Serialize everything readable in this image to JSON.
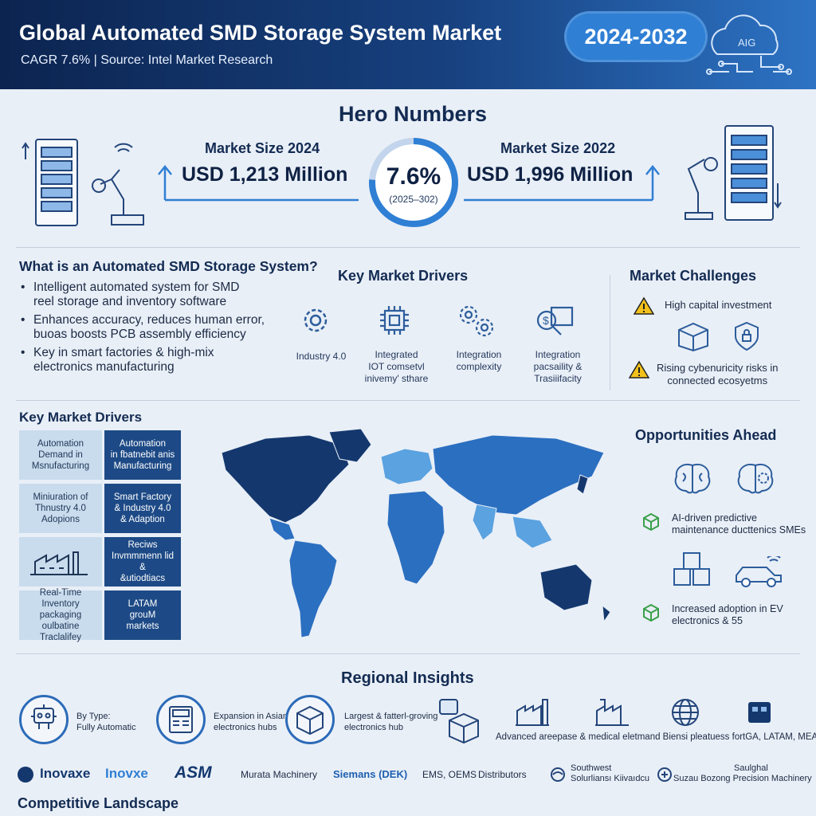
{
  "header": {
    "title": "Global Automated SMD Storage System Market",
    "subtitle": "CAGR 7.6% | Source: Intel Market Research",
    "year_range": "2024-2032",
    "cloud_label": "AIG"
  },
  "hero": {
    "heading": "Hero Numbers",
    "left_label": "Market Size 2024",
    "left_value": "USD 1,213 Million",
    "right_label": "Market Size 2022",
    "right_value": "USD 1,996 Million",
    "cagr_value": "7.6%",
    "cagr_range": "(2025–302)",
    "cagr_fraction": 0.76
  },
  "what_is": {
    "heading": "What is an Automated SMD Storage System?",
    "bullets": [
      [
        "Intelligent automated system for SMD",
        "reel storage and inventory software"
      ],
      [
        "Enhances accuracy, reduces human error,",
        "buoas boosts PCB assembly efficiency"
      ],
      [
        " Key in smart factories & high-mix",
        "electronics manufacturing"
      ]
    ],
    "bullet_mark": "•"
  },
  "drivers_top": {
    "heading": "Key Market Drivers",
    "items": [
      {
        "icon": "gear-icon",
        "lines": [
          "Industry 4.0"
        ]
      },
      {
        "icon": "chip-icon",
        "lines": [
          "Integrated",
          "IOT comsetvl",
          "inivemy' sthare"
        ]
      },
      {
        "icon": "gears-icon",
        "lines": [
          "Integration",
          "complexity"
        ]
      },
      {
        "icon": "dollar-search-icon",
        "lines": [
          "Integration",
          "pacsaility &",
          "Trasiiifacity"
        ]
      }
    ]
  },
  "challenges": {
    "heading": "Market Challenges",
    "items": [
      {
        "icon": "warning-icon",
        "lines": [
          "High capital investment"
        ]
      },
      {
        "icon": "warning-icon",
        "lines": [
          "Rising cybenuricity risks in",
          "connected ecosyetms"
        ]
      }
    ]
  },
  "drivers_grid": {
    "heading": "Key Market Drivers",
    "rows": [
      {
        "left": [
          "Automation",
          "Demand in",
          "Msnufacturing"
        ],
        "right": [
          "Automation",
          "in fbatnebit anis",
          "Manufacturing"
        ]
      },
      {
        "left": [
          "Miniuration of",
          "Thnustry 4.0",
          "Adopions"
        ],
        "right": [
          "Smart Factory",
          "& Industry 4.0",
          "& Adaption"
        ]
      },
      {
        "left": [],
        "right": [
          "Reciws",
          "Invmmmenn lid &",
          "&utiodtiacs"
        ]
      },
      {
        "left": [
          "Real-Time Inventory",
          "packaging oulbatine",
          "Traclalifey"
        ],
        "right": [
          "LATAM",
          "grouM",
          "markets"
        ]
      }
    ]
  },
  "opportunities": {
    "heading": "Opportunities Ahead",
    "items": [
      {
        "lines": [
          "AI-driven predictive",
          "maintenance ducttenics SMEs"
        ]
      },
      {
        "lines": [
          "Increased adoption in EV",
          "electronics & 55"
        ]
      }
    ]
  },
  "regional": {
    "heading": "Regional Insights",
    "items": [
      {
        "icon": "robot-icon",
        "lines": [
          "By Type:",
          "Fully Automatic"
        ]
      },
      {
        "icon": "machine-icon",
        "lines": [
          "Expansion in Asian",
          "electronics hubs"
        ]
      },
      {
        "icon": "box-icon",
        "lines": [
          "Largest & fatterl-groving",
          "electronics hub"
        ]
      }
    ],
    "footnote": "Advanced areepase & medical eletmand Biensi pleatuess fortGA, LATAM, MEA)"
  },
  "competitors": {
    "heading": "Competitive Landscape",
    "logos": [
      "Inovaxe",
      "Inovxe",
      "ASM",
      "Murata Machinery",
      "Siemans (DEK)",
      "EMS, OEMS",
      "Distributors"
    ],
    "southwest": [
      "Southwest",
      "Solurliansı Kiivaıdcu"
    ],
    "suzou": [
      "Saulghal",
      "Suzau Bozong Precision Machinery"
    ]
  },
  "colors": {
    "navy": "#0c2450",
    "accent": "#2f7fd4",
    "map_dark": "#14386e",
    "map_mid": "#2b6fc0",
    "map_light": "#5aa2e0"
  }
}
